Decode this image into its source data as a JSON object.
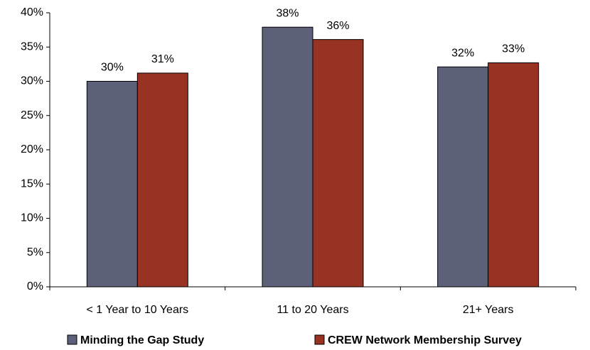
{
  "chart_data": {
    "type": "bar",
    "categories": [
      "< 1 Year to 10 Years",
      "11 to 20 Years",
      "21+ Years"
    ],
    "series": [
      {
        "name": "Minding the Gap Study",
        "color": "#5c6078",
        "values": [
          30.0,
          37.9,
          32.1
        ],
        "value_labels": [
          "30%",
          "38%",
          "32%"
        ]
      },
      {
        "name": "CREW Network Membership Survey",
        "color": "#983222",
        "values": [
          31.2,
          36.1,
          32.7
        ],
        "value_labels": [
          "31%",
          "36%",
          "33%"
        ]
      }
    ],
    "ylim": [
      0,
      40
    ],
    "yticks": [
      {
        "value": 0,
        "label": "0%"
      },
      {
        "value": 5,
        "label": "5%"
      },
      {
        "value": 10,
        "label": "10%"
      },
      {
        "value": 15,
        "label": "15%"
      },
      {
        "value": 20,
        "label": "20%"
      },
      {
        "value": 25,
        "label": "25%"
      },
      {
        "value": 30,
        "label": "30%"
      },
      {
        "value": 35,
        "label": "35%"
      },
      {
        "value": 40,
        "label": "40%"
      }
    ],
    "grid": false,
    "legend": "bottom"
  }
}
